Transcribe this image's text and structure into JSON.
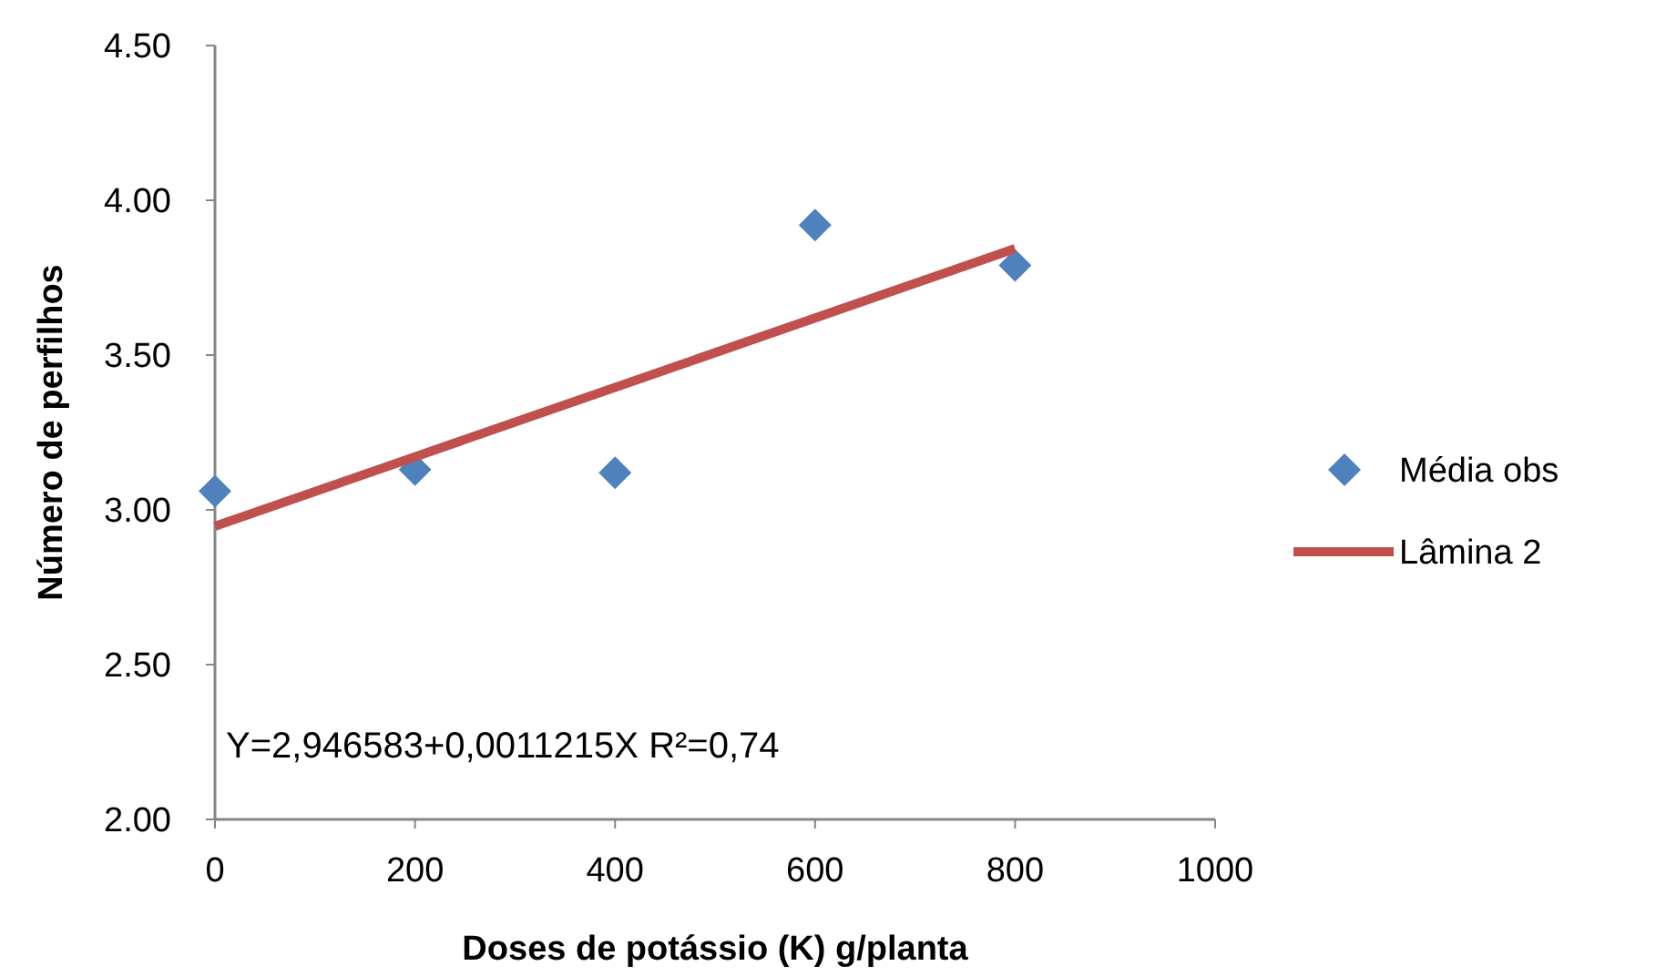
{
  "chart_data": {
    "type": "scatter",
    "xlabel": "Doses de potássio (K) g/planta",
    "ylabel": "Número de perfilhos",
    "xlim": [
      0,
      1000
    ],
    "xticks": [
      0,
      200,
      400,
      600,
      800,
      1000
    ],
    "ylim": [
      2,
      4.5
    ],
    "yticks": [
      {
        "value": 2,
        "label": "2.00"
      },
      {
        "value": 2.5,
        "label": "2.50"
      },
      {
        "value": 3,
        "label": "3.00"
      },
      {
        "value": 3.5,
        "label": "3.50"
      },
      {
        "value": 4,
        "label": "4.00"
      },
      {
        "value": 4.5,
        "label": "4.50"
      }
    ],
    "series": [
      {
        "name": "Média obs",
        "color": "#4f81bd",
        "marker": "diamond",
        "x": [
          0,
          200,
          400,
          600,
          800
        ],
        "values": [
          3.06,
          3.13,
          3.12,
          3.92,
          3.79
        ]
      },
      {
        "name": "Lâmina 2",
        "type": "line",
        "color": "#c0504d",
        "marker": "none",
        "x": [
          0,
          800
        ],
        "values": [
          2.947,
          3.844
        ]
      }
    ],
    "annotations": [
      "Y=2,946583+0,0011215X   R²=0,74"
    ],
    "legend": "right",
    "grid": false
  }
}
